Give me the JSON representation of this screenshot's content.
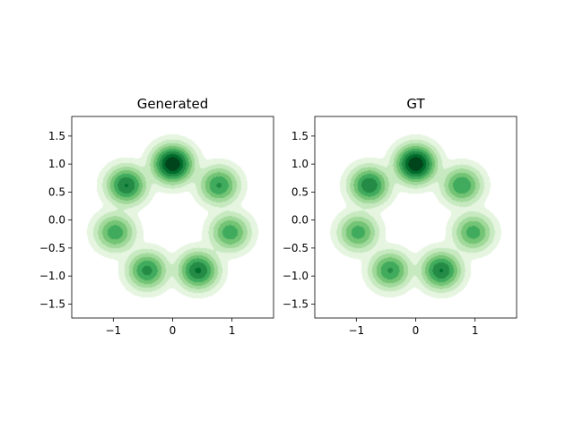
{
  "chart_data": [
    {
      "type": "heatmap",
      "subtype": "kde-contour",
      "title": "Generated",
      "xlabel": "",
      "ylabel": "",
      "xlim": [
        -1.7,
        1.7
      ],
      "ylim": [
        -1.75,
        1.85
      ],
      "xticks": [
        -1,
        0,
        1
      ],
      "xtick_labels": [
        "−1",
        "0",
        "1"
      ],
      "yticks": [
        1.5,
        1.0,
        0.5,
        0.0,
        -0.5,
        -1.0,
        -1.5
      ],
      "ytick_labels": [
        "1.5",
        "1.0",
        "0.5",
        "0.0",
        "−0.5",
        "−1.0",
        "−1.5"
      ],
      "grid": false,
      "colormap": [
        "#f7fcf5",
        "#e5f5e0",
        "#c7e9c0",
        "#a1d99b",
        "#74c476",
        "#41ab5d",
        "#238b45",
        "#006d2c",
        "#00441b"
      ],
      "modes": [
        {
          "x": 0.0,
          "y": 1.0,
          "weight": 1.0
        },
        {
          "x": -0.78,
          "y": 0.62,
          "weight": 0.58
        },
        {
          "x": 0.78,
          "y": 0.62,
          "weight": 0.42
        },
        {
          "x": -0.97,
          "y": -0.22,
          "weight": 0.36
        },
        {
          "x": 0.97,
          "y": -0.22,
          "weight": 0.36
        },
        {
          "x": -0.43,
          "y": -0.9,
          "weight": 0.46
        },
        {
          "x": 0.43,
          "y": -0.9,
          "weight": 0.6
        }
      ]
    },
    {
      "type": "heatmap",
      "subtype": "kde-contour",
      "title": "GT",
      "xlabel": "",
      "ylabel": "",
      "xlim": [
        -1.7,
        1.7
      ],
      "ylim": [
        -1.75,
        1.85
      ],
      "xticks": [
        -1,
        0,
        1
      ],
      "xtick_labels": [
        "−1",
        "0",
        "1"
      ],
      "yticks": [
        1.5,
        1.0,
        0.5,
        0.0,
        -0.5,
        -1.0,
        -1.5
      ],
      "ytick_labels": [
        "1.5",
        "1.0",
        "0.5",
        "0.0",
        "−0.5",
        "−1.0",
        "−1.5"
      ],
      "grid": false,
      "colormap": [
        "#f7fcf5",
        "#e5f5e0",
        "#c7e9c0",
        "#a1d99b",
        "#74c476",
        "#41ab5d",
        "#238b45",
        "#006d2c",
        "#00441b"
      ],
      "modes": [
        {
          "x": 0.0,
          "y": 1.0,
          "weight": 1.0
        },
        {
          "x": -0.78,
          "y": 0.62,
          "weight": 0.55
        },
        {
          "x": 0.78,
          "y": 0.62,
          "weight": 0.4
        },
        {
          "x": -0.97,
          "y": -0.22,
          "weight": 0.34
        },
        {
          "x": 0.97,
          "y": -0.22,
          "weight": 0.34
        },
        {
          "x": -0.43,
          "y": -0.9,
          "weight": 0.42
        },
        {
          "x": 0.43,
          "y": -0.9,
          "weight": 0.58
        }
      ]
    }
  ]
}
